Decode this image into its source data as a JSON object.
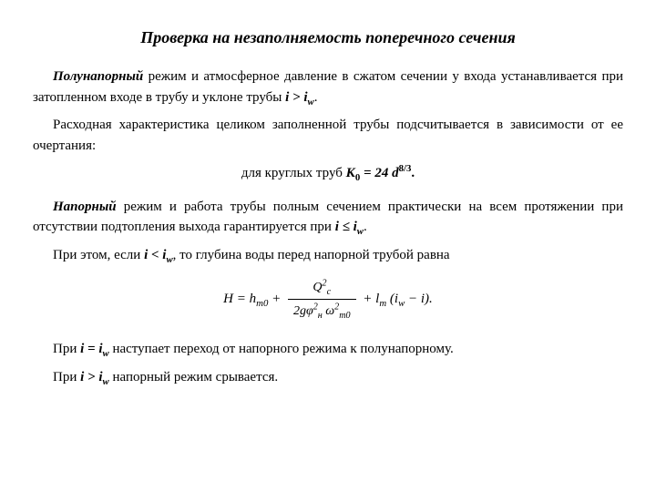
{
  "title": "Проверка на незаполняемость поперечного сечения",
  "p1a": "Полунапорный",
  "p1b": " режим и атмосферное давление в сжатом сечении у входа устанавливается при затопленном входе в трубу и уклоне трубы ",
  "p1c": "i > i",
  "p1d": "w",
  "p1e": ".",
  "p2": "Расходная характеристика целиком заполненной трубы  подсчитывается в зависимости от ее очертания:",
  "f1a": "для круглых труб ",
  "f1b": "К",
  "f1c": "0",
  "f1d": " = 24 d",
  "f1e": "8/3",
  "f1f": ".",
  "p3a": "Напорный",
  "p3b": " режим и работа трубы полным сечением практически на всем протяжении при отсутствии подтопления выхода гарантируется при ",
  "p3c": "i ≤ i",
  "p3d": "w",
  "p3e": ".",
  "p4a": "При этом, если ",
  "p4b": "i < i",
  "p4c": "w",
  "p4d": ", то глубина воды перед напорной трубой равна",
  "hf_left": "H = h",
  "hf_sub1": "т0",
  "hf_plus1": " + ",
  "hf_num": "Q",
  "hf_num_sup": "2",
  "hf_num_sub": "с",
  "hf_den_a": "2gφ",
  "hf_den_sup1": "2",
  "hf_den_sub1": "н",
  "hf_den_b": " ω",
  "hf_den_sup2": "2",
  "hf_den_sub2": "т0",
  "hf_plus2": " + l",
  "hf_sub2": "т",
  "hf_paren_a": " (i",
  "hf_paren_sub": "w",
  "hf_paren_b": " − i).",
  "p5a": "При ",
  "p5b": "i = i",
  "p5c": "w",
  "p5d": " наступает переход от напорного режима к полунапорному.",
  "p6a": "При ",
  "p6b": "i > i",
  "p6c": "w",
  "p6d": " напорный режим срывается."
}
